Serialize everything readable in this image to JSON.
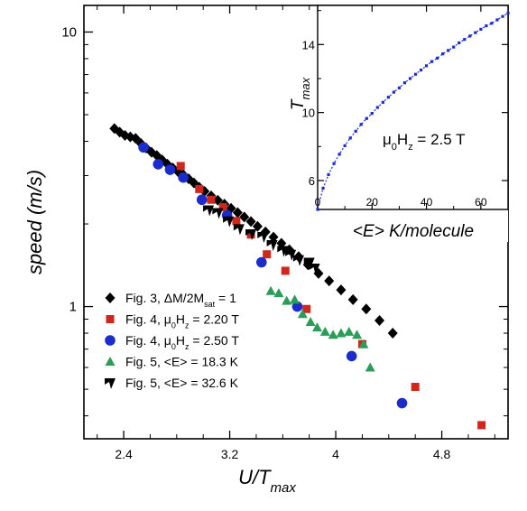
{
  "chart_data": [
    {
      "type": "scatter",
      "xlabel": "U/T",
      "xlabel_sub": "max",
      "ylabel": "speed (m/s)",
      "xlim": [
        2.1,
        5.3
      ],
      "ylim": [
        0.33,
        12.5
      ],
      "yscale": "log",
      "xticks": [
        2.4,
        3.2,
        4,
        4.8
      ],
      "xtick_labels": [
        "2.4",
        "3.2",
        "4",
        "4.8"
      ],
      "yticks": [
        1,
        10
      ],
      "ytick_labels": [
        "1",
        "10"
      ],
      "legend_position": "bottom-left",
      "series": [
        {
          "name": "Fig. 3, ΔM/2M",
          "name_sub": "sat",
          "name_rest": " = 1",
          "marker": "diamond",
          "color": "#000000",
          "points": [
            [
              2.33,
              4.45
            ],
            [
              2.37,
              4.32
            ],
            [
              2.41,
              4.2
            ],
            [
              2.45,
              4.15
            ],
            [
              2.49,
              4.1
            ],
            [
              2.53,
              3.93
            ],
            [
              2.57,
              3.78
            ],
            [
              2.61,
              3.65
            ],
            [
              2.65,
              3.55
            ],
            [
              2.69,
              3.42
            ],
            [
              2.73,
              3.3
            ],
            [
              2.77,
              3.2
            ],
            [
              2.81,
              3.1
            ],
            [
              2.85,
              3.02
            ],
            [
              2.89,
              2.92
            ],
            [
              2.93,
              2.82
            ],
            [
              2.97,
              2.72
            ],
            [
              3.01,
              2.63
            ],
            [
              3.06,
              2.53
            ],
            [
              3.11,
              2.44
            ],
            [
              3.16,
              2.36
            ],
            [
              3.21,
              2.28
            ],
            [
              3.26,
              2.2
            ],
            [
              3.31,
              2.12
            ],
            [
              3.36,
              2.04
            ],
            [
              3.41,
              1.96
            ],
            [
              3.47,
              1.87
            ],
            [
              3.53,
              1.79
            ],
            [
              3.59,
              1.7
            ],
            [
              3.65,
              1.61
            ],
            [
              3.72,
              1.52
            ],
            [
              3.79,
              1.42
            ],
            [
              3.87,
              1.32
            ],
            [
              3.95,
              1.24
            ],
            [
              4.04,
              1.15
            ],
            [
              4.13,
              1.06
            ],
            [
              4.23,
              0.98
            ],
            [
              4.33,
              0.89
            ],
            [
              4.43,
              0.8
            ]
          ]
        },
        {
          "name": "Fig. 4, μ",
          "name_sub": "0",
          "name_mid": "H",
          "name_sub2": "z",
          "name_rest": " = 2.20 T",
          "marker": "square",
          "color": "#d0261b",
          "points": [
            [
              2.83,
              3.25
            ],
            [
              2.97,
              2.68
            ],
            [
              3.06,
              2.45
            ],
            [
              3.15,
              2.3
            ],
            [
              3.25,
              2.05
            ],
            [
              3.36,
              1.83
            ],
            [
              3.48,
              1.55
            ],
            [
              3.62,
              1.35
            ],
            [
              3.78,
              0.98
            ],
            [
              4.2,
              0.73
            ],
            [
              4.6,
              0.51
            ],
            [
              5.1,
              0.37
            ]
          ]
        },
        {
          "name": "Fig. 4, μ",
          "name_sub": "0",
          "name_mid": "H",
          "name_sub2": "z",
          "name_rest": " = 2.50 T",
          "marker": "circle",
          "color": "#1b2ccb",
          "points": [
            [
              2.55,
              3.8
            ],
            [
              2.66,
              3.3
            ],
            [
              2.75,
              3.15
            ],
            [
              2.85,
              2.95
            ],
            [
              2.99,
              2.45
            ],
            [
              3.18,
              2.15
            ],
            [
              3.44,
              1.45
            ],
            [
              3.71,
              1.0
            ],
            [
              4.12,
              0.66
            ],
            [
              4.5,
              0.445
            ]
          ]
        },
        {
          "name": "Fig. 5, <E> = 18.3 K",
          "marker": "triangle",
          "color": "#2a9d58",
          "points": [
            [
              3.51,
              1.14
            ],
            [
              3.57,
              1.12
            ],
            [
              3.63,
              1.05
            ],
            [
              3.69,
              1.06
            ],
            [
              3.75,
              0.94
            ],
            [
              3.81,
              0.88
            ],
            [
              3.86,
              0.84
            ],
            [
              3.92,
              0.81
            ],
            [
              3.98,
              0.79
            ],
            [
              4.04,
              0.8
            ],
            [
              4.1,
              0.81
            ],
            [
              4.16,
              0.79
            ],
            [
              4.21,
              0.73
            ],
            [
              4.26,
              0.6
            ]
          ]
        },
        {
          "name": "Fig. 5, <E> = 32.6 K",
          "marker": "notch",
          "color": "#000000",
          "points": [
            [
              3.04,
              2.25
            ],
            [
              3.11,
              2.2
            ],
            [
              3.19,
              2.05
            ],
            [
              3.27,
              1.92
            ],
            [
              3.36,
              1.84
            ],
            [
              3.45,
              1.8
            ],
            [
              3.52,
              1.68
            ],
            [
              3.6,
              1.6
            ],
            [
              3.66,
              1.55
            ],
            [
              3.72,
              1.48
            ],
            [
              3.8,
              1.45
            ],
            [
              3.84,
              1.38
            ]
          ]
        }
      ]
    },
    {
      "type": "line",
      "xlabel": "<E> K/molecule",
      "ylabel": "T",
      "ylabel_sub": "max",
      "xlim": [
        0,
        70
      ],
      "ylim": [
        4.3,
        16.3
      ],
      "xticks": [
        0,
        20,
        40,
        60
      ],
      "xtick_labels": [
        "0",
        "20",
        "40",
        "60"
      ],
      "yticks": [
        6,
        10,
        14
      ],
      "ytick_labels": [
        "6",
        "10",
        "14"
      ],
      "annotation": {
        "pre": "μ",
        "sub1": "0",
        "mid": "H",
        "sub2": "z",
        "post": " = 2.5 T"
      },
      "series": [
        {
          "color": "#1b2ccb",
          "marker": "small-square",
          "x": [
            0,
            2,
            4,
            6,
            8,
            10,
            12,
            14,
            16,
            18,
            20,
            22,
            24,
            26,
            28,
            30,
            32,
            34,
            36,
            38,
            40,
            42,
            44,
            46,
            48,
            50,
            52,
            54,
            56,
            58,
            60,
            62,
            64,
            66,
            68,
            70
          ],
          "y": [
            4.3,
            5.55,
            6.35,
            7.0,
            7.55,
            8.05,
            8.5,
            8.9,
            9.3,
            9.65,
            9.95,
            10.3,
            10.6,
            10.9,
            11.2,
            11.45,
            11.75,
            12.0,
            12.25,
            12.5,
            12.75,
            13.0,
            13.2,
            13.45,
            13.65,
            13.85,
            14.1,
            14.3,
            14.5,
            14.7,
            14.9,
            15.1,
            15.25,
            15.45,
            15.65,
            15.85
          ]
        }
      ]
    }
  ]
}
